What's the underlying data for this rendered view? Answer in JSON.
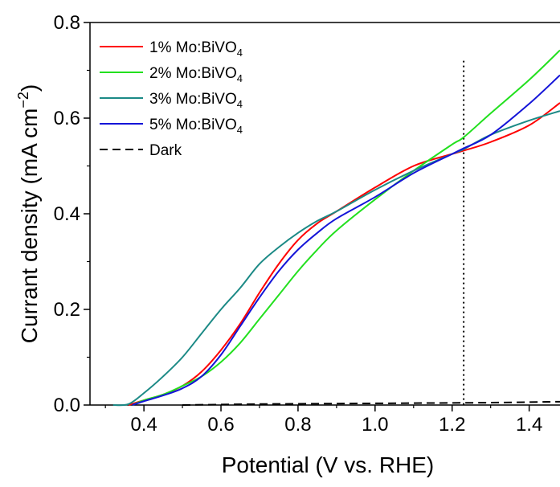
{
  "chart_data": {
    "type": "line",
    "xlabel": "Potential (V vs. RHE)",
    "ylabel_main": "Currant density (mA cm",
    "ylabel_sup": "−2",
    "ylabel_close": ")",
    "xlim": [
      0.26,
      1.48
    ],
    "ylim": [
      0.0,
      0.8
    ],
    "x_ticks": [
      0.4,
      0.6,
      0.8,
      1.0,
      1.2,
      1.4
    ],
    "x_tick_labels": [
      "0.4",
      "0.6",
      "0.8",
      "1.0",
      "1.2",
      "1.4"
    ],
    "y_ticks": [
      0.0,
      0.2,
      0.4,
      0.6,
      0.8
    ],
    "y_tick_labels": [
      "0.0",
      "0.2",
      "0.4",
      "0.6",
      "0.8"
    ],
    "grid": false,
    "legend_position": "top-left",
    "reference_line": {
      "x": 1.23,
      "y_top": 0.72
    },
    "series": [
      {
        "name_main": "1% Mo:BiVO",
        "name_sub": "4",
        "color": "#ff0000",
        "dash": "solid",
        "x": [
          0.36,
          0.4,
          0.45,
          0.5,
          0.55,
          0.6,
          0.65,
          0.7,
          0.75,
          0.8,
          0.85,
          0.9,
          1.0,
          1.1,
          1.2,
          1.23,
          1.3,
          1.4,
          1.48
        ],
        "y": [
          0.0,
          0.01,
          0.022,
          0.04,
          0.07,
          0.115,
          0.17,
          0.235,
          0.295,
          0.345,
          0.38,
          0.405,
          0.455,
          0.5,
          0.525,
          0.532,
          0.55,
          0.585,
          0.632
        ]
      },
      {
        "name_main": "2% Mo:BiVO",
        "name_sub": "4",
        "color": "#22e01e",
        "dash": "solid",
        "x": [
          0.37,
          0.4,
          0.45,
          0.5,
          0.55,
          0.6,
          0.65,
          0.7,
          0.75,
          0.8,
          0.85,
          0.9,
          1.0,
          1.1,
          1.2,
          1.23,
          1.3,
          1.4,
          1.48
        ],
        "y": [
          0.0,
          0.01,
          0.022,
          0.04,
          0.06,
          0.09,
          0.13,
          0.18,
          0.23,
          0.28,
          0.325,
          0.365,
          0.43,
          0.49,
          0.545,
          0.56,
          0.61,
          0.68,
          0.742
        ]
      },
      {
        "name_main": "3% Mo:BiVO",
        "name_sub": "4",
        "color": "#1c8a86",
        "dash": "solid",
        "x": [
          0.32,
          0.36,
          0.4,
          0.45,
          0.5,
          0.55,
          0.6,
          0.65,
          0.7,
          0.75,
          0.8,
          0.85,
          0.9,
          1.0,
          1.1,
          1.2,
          1.23,
          1.3,
          1.4,
          1.48
        ],
        "y": [
          0.0,
          0.002,
          0.025,
          0.06,
          0.1,
          0.15,
          0.2,
          0.245,
          0.295,
          0.33,
          0.36,
          0.385,
          0.405,
          0.45,
          0.49,
          0.525,
          0.535,
          0.565,
          0.595,
          0.615
        ]
      },
      {
        "name_main": "5% Mo:BiVO",
        "name_sub": "4",
        "color": "#1414d8",
        "dash": "solid",
        "x": [
          0.37,
          0.4,
          0.45,
          0.5,
          0.55,
          0.6,
          0.65,
          0.7,
          0.75,
          0.8,
          0.85,
          0.9,
          1.0,
          1.1,
          1.2,
          1.23,
          1.3,
          1.4,
          1.48
        ],
        "y": [
          0.0,
          0.008,
          0.02,
          0.035,
          0.06,
          0.105,
          0.165,
          0.225,
          0.28,
          0.325,
          0.36,
          0.39,
          0.435,
          0.485,
          0.525,
          0.537,
          0.565,
          0.63,
          0.69
        ]
      },
      {
        "name_main": "Dark",
        "name_sub": "",
        "color": "#000000",
        "dash": "dashed",
        "x": [
          0.5,
          0.7,
          0.9,
          1.1,
          1.3,
          1.48
        ],
        "y": [
          0.0,
          0.002,
          0.003,
          0.004,
          0.005,
          0.007
        ]
      }
    ]
  }
}
